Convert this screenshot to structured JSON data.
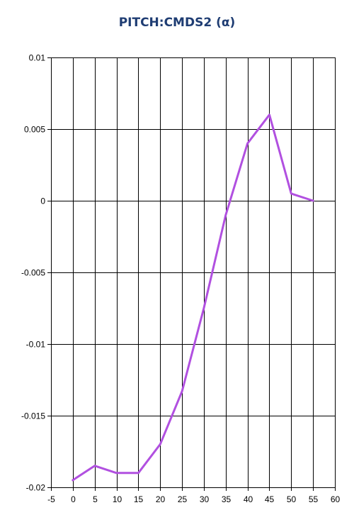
{
  "chart_data": {
    "type": "line",
    "title": "PITCH:CMDS2 (α)",
    "xlabel": "",
    "ylabel": "",
    "xlim": [
      -5,
      60
    ],
    "ylim": [
      -0.02,
      0.01
    ],
    "x_ticks": [
      -5,
      0,
      5,
      10,
      15,
      20,
      25,
      30,
      35,
      40,
      45,
      50,
      55,
      60
    ],
    "y_ticks": [
      0.01,
      0.005,
      0,
      -0.005,
      -0.01,
      -0.015,
      -0.02
    ],
    "grid": true,
    "series": [
      {
        "color": "#b150e0",
        "x": [
          0,
          5,
          10,
          15,
          20,
          25,
          30,
          35,
          40,
          45,
          50,
          55
        ],
        "y": [
          -0.0195,
          -0.0185,
          -0.019,
          -0.019,
          -0.017,
          -0.0133,
          -0.0075,
          -0.001,
          0.004,
          0.006,
          0.0005,
          0
        ]
      }
    ]
  }
}
